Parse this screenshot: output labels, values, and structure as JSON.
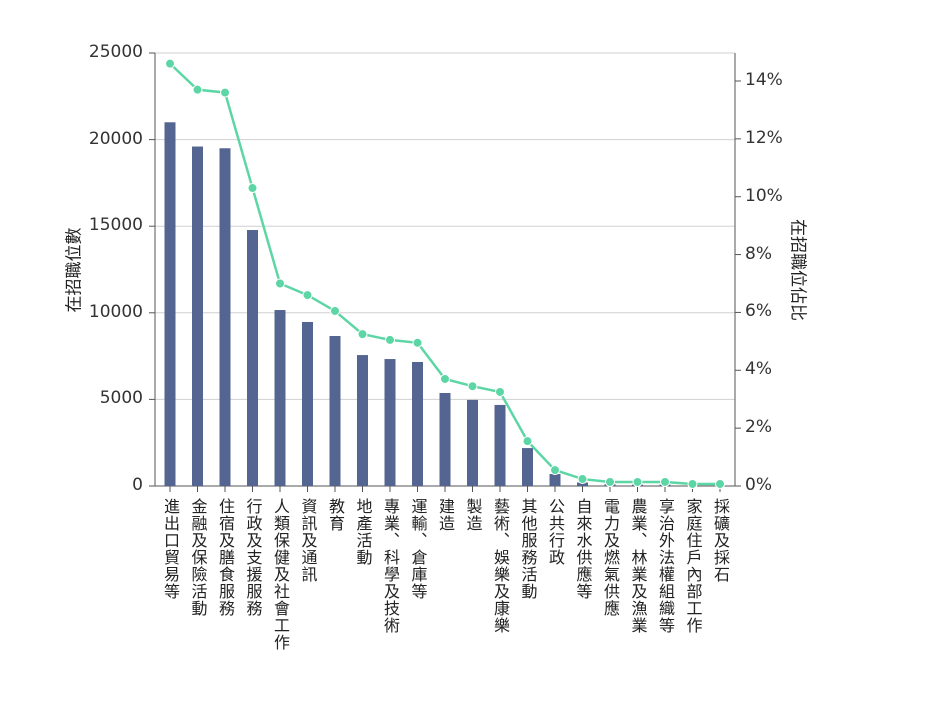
{
  "chart_data": {
    "type": "bar+line",
    "categories": [
      "進出口貿易等",
      "金融及保險活動",
      "住宿及膳食服務",
      "行政及支援服務",
      "人類保健及社會工作",
      "資訊及通訊",
      "教育",
      "地產活動",
      "專業、科學及技術",
      "運輸、倉庫等",
      "建造",
      "製造",
      "藝術、娛樂及康樂",
      "其他服務活動",
      "公共行政",
      "自來水供應等",
      "電力及燃氣供應",
      "農業、林業及漁業",
      "享治外法權組織等",
      "家庭住戶內部工作",
      "採礦及採石"
    ],
    "series": [
      {
        "name": "在招聘職位數",
        "axis": "left",
        "type": "bar",
        "color": "#556592",
        "values": [
          21000,
          19600,
          19500,
          14780,
          10160,
          9470,
          8660,
          7560,
          7330,
          7160,
          5370,
          4970,
          4680,
          2190,
          690,
          200,
          100,
          80,
          80,
          20,
          10
        ]
      },
      {
        "name": "在招職位佔比",
        "axis": "right",
        "type": "line",
        "color": "#5dd6a5",
        "values": [
          14.6,
          13.7,
          13.6,
          10.3,
          7.0,
          6.6,
          6.05,
          5.25,
          5.05,
          4.95,
          3.7,
          3.45,
          3.25,
          1.55,
          0.55,
          0.24,
          0.14,
          0.14,
          0.14,
          0.07,
          0.07
        ]
      }
    ],
    "ylabel": "在招職位數",
    "y2label": "在招職位佔比",
    "ylim": [
      0,
      25000
    ],
    "y2lim": [
      0,
      15
    ],
    "yticks": [
      "0",
      "5000",
      "10000",
      "15000",
      "20000",
      "25000"
    ],
    "yticks_values": [
      0,
      5000,
      10000,
      15000,
      20000,
      25000
    ],
    "y2ticks": [
      "0%",
      "2%",
      "4%",
      "6%",
      "8%",
      "10%",
      "12%",
      "14%"
    ],
    "y2ticks_values": [
      0,
      2,
      4,
      6,
      8,
      10,
      12,
      14
    ],
    "grid": true
  }
}
